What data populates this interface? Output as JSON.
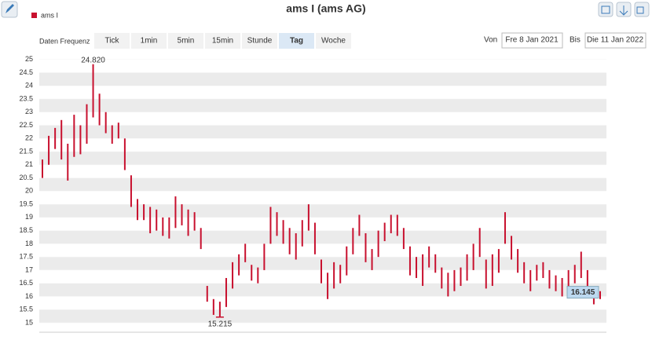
{
  "header": {
    "title": "ams I (ams AG)",
    "frequency_label": "Daten Frequenz",
    "frequencies": [
      "Tick",
      "1min",
      "5min",
      "15min",
      "Stunde",
      "Tag",
      "Woche"
    ],
    "active_frequency": "Tag",
    "from_label": "Von",
    "from": "Fre 8 Jan 2021",
    "to_label": "Bis",
    "to": "Die 11 Jan 2022"
  },
  "chart_data": {
    "type": "ohlc",
    "title": "ams I (ams AG)",
    "series": [
      {
        "name": "ams I",
        "color": "#c8102e",
        "low": [
          20.5,
          21.0,
          21.6,
          21.2,
          20.4,
          21.3,
          21.4,
          21.8,
          22.8,
          22.5,
          22.2,
          21.8,
          22.0,
          20.8,
          19.4,
          18.9,
          18.9,
          18.4,
          18.5,
          18.3,
          18.2,
          18.6,
          18.7,
          18.3,
          18.5,
          17.8,
          15.8,
          15.3,
          15.215,
          15.6,
          16.3,
          16.8,
          17.3,
          16.6,
          16.5,
          17.0,
          18.0,
          18.3,
          18.0,
          17.6,
          17.4,
          17.9,
          18.5,
          17.6,
          16.5,
          15.9,
          16.3,
          16.5,
          16.8,
          17.6,
          18.3,
          17.3,
          17.0,
          17.5,
          18.1,
          18.4,
          18.3,
          17.8,
          16.8,
          16.7,
          16.4,
          17.1,
          16.9,
          16.3,
          16.0,
          16.2,
          16.4,
          16.6,
          17.0,
          17.5,
          16.3,
          16.4,
          16.9,
          18.0,
          17.4,
          16.9,
          16.5,
          16.2,
          16.6,
          16.7,
          16.3,
          16.2,
          16.0,
          16.3,
          16.5,
          16.7,
          16.2,
          15.7,
          15.9
        ],
        "high": [
          21.2,
          22.1,
          22.4,
          22.7,
          21.8,
          22.9,
          22.5,
          23.3,
          24.82,
          23.7,
          23.0,
          22.5,
          22.6,
          22.0,
          20.6,
          19.7,
          19.5,
          19.4,
          19.3,
          19.0,
          19.0,
          19.8,
          19.5,
          19.3,
          19.2,
          18.6,
          16.4,
          15.9,
          15.8,
          16.7,
          17.3,
          17.6,
          18.0,
          17.2,
          17.1,
          18.0,
          19.4,
          19.2,
          18.9,
          18.6,
          18.4,
          18.9,
          19.5,
          18.8,
          17.4,
          16.9,
          17.3,
          17.2,
          17.9,
          18.6,
          19.1,
          18.4,
          17.8,
          18.5,
          18.8,
          19.1,
          19.1,
          18.6,
          17.9,
          17.5,
          17.6,
          17.9,
          17.6,
          17.1,
          16.9,
          17.0,
          17.1,
          17.6,
          18.0,
          18.6,
          17.4,
          17.6,
          17.8,
          19.2,
          18.3,
          17.8,
          17.3,
          17.0,
          17.2,
          17.3,
          17.0,
          16.8,
          16.7,
          17.0,
          17.2,
          17.7,
          17.0,
          16.3,
          16.2
        ]
      }
    ],
    "max": {
      "value": 24.82,
      "label": "24.820"
    },
    "min": {
      "value": 15.215,
      "label": "15.215"
    },
    "last": {
      "value": 16.145,
      "label": "16.145"
    },
    "ylim": [
      14.85,
      25.2
    ],
    "yticks": [
      15,
      15.5,
      16,
      16.5,
      17,
      17.5,
      18,
      18.5,
      19,
      19.5,
      20,
      20.5,
      21,
      21.5,
      22,
      22.5,
      23,
      23.5,
      24,
      24.5,
      25
    ],
    "grid": true
  }
}
